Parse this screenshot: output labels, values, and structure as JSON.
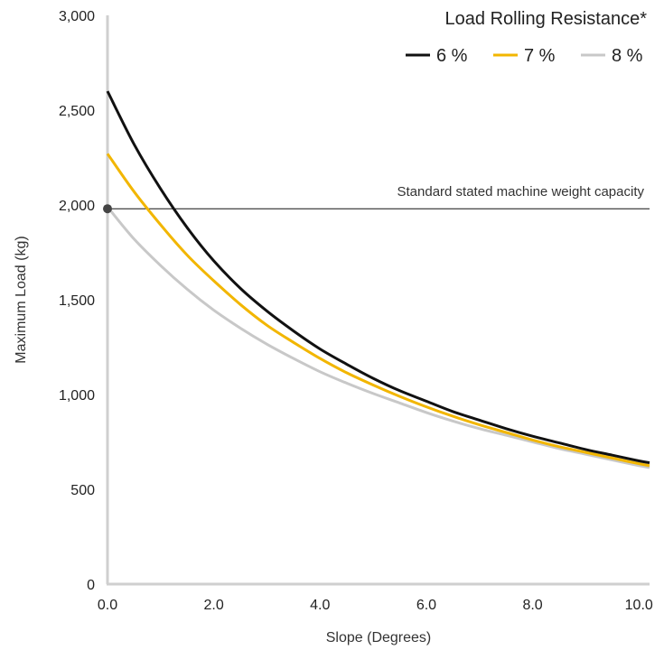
{
  "chart_data": {
    "type": "line",
    "xlabel": "Slope (Degrees)",
    "ylabel": "Maximum Load (kg)",
    "xlim": [
      0,
      10.2
    ],
    "ylim": [
      0,
      3000
    ],
    "x_ticks": [
      "0.0",
      "2.0",
      "4.0",
      "6.0",
      "8.0",
      "10.0"
    ],
    "x_tick_values": [
      0,
      2,
      4,
      6,
      8,
      10
    ],
    "y_ticks": [
      "0",
      "500",
      "1,000",
      "1,500",
      "2,000",
      "2,500",
      "3,000"
    ],
    "y_tick_values": [
      0,
      500,
      1000,
      1500,
      2000,
      2500,
      3000
    ],
    "grid": false,
    "legend": {
      "title": "Load Rolling Resistance*",
      "placement": "top-right"
    },
    "series": [
      {
        "name": "6 %",
        "color": "#111111",
        "x": [
          0,
          0.5,
          1.0,
          1.5,
          2.0,
          2.5,
          3.0,
          3.5,
          4.0,
          4.5,
          5.0,
          5.5,
          6.0,
          6.5,
          7.0,
          7.5,
          8.0,
          8.5,
          9.0,
          9.5,
          10.0,
          10.2
        ],
        "y": [
          2600,
          2320,
          2085,
          1880,
          1705,
          1560,
          1440,
          1335,
          1240,
          1160,
          1085,
          1020,
          965,
          910,
          865,
          820,
          780,
          745,
          710,
          680,
          650,
          640
        ]
      },
      {
        "name": "7 %",
        "color": "#f2b600",
        "x": [
          0,
          0.5,
          1.0,
          1.5,
          2.0,
          2.5,
          3.0,
          3.5,
          4.0,
          4.5,
          5.0,
          5.5,
          6.0,
          6.5,
          7.0,
          7.5,
          8.0,
          8.5,
          9.0,
          9.5,
          10.0,
          10.2
        ],
        "y": [
          2270,
          2070,
          1895,
          1735,
          1600,
          1475,
          1365,
          1275,
          1190,
          1115,
          1050,
          990,
          935,
          885,
          840,
          800,
          760,
          725,
          695,
          665,
          635,
          625
        ]
      },
      {
        "name": "8 %",
        "color": "#c8c8c8",
        "x": [
          0,
          0.5,
          1.0,
          1.5,
          2.0,
          2.5,
          3.0,
          3.5,
          4.0,
          4.5,
          5.0,
          5.5,
          6.0,
          6.5,
          7.0,
          7.5,
          8.0,
          8.5,
          9.0,
          9.5,
          10.0,
          10.2
        ],
        "y": [
          1990,
          1820,
          1680,
          1555,
          1445,
          1350,
          1265,
          1190,
          1120,
          1060,
          1005,
          955,
          905,
          860,
          820,
          785,
          750,
          715,
          685,
          655,
          625,
          615
        ]
      }
    ],
    "reference_line": {
      "y": 1980,
      "label": "Standard stated machine weight capacity",
      "marker_x": 0
    }
  }
}
